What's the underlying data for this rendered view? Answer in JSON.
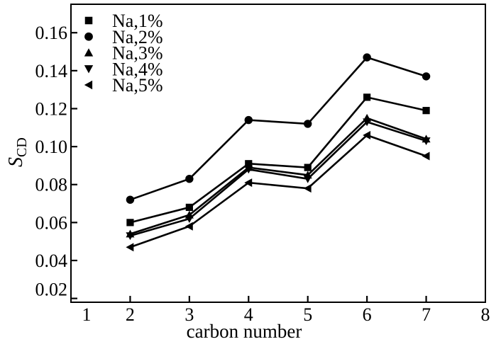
{
  "chart_data": {
    "type": "line",
    "title": "",
    "xlabel": "carbon number",
    "ylabel": "S",
    "ylabel_subscript": "CD",
    "x": [
      2,
      3,
      4,
      5,
      6,
      7
    ],
    "xlim": [
      1,
      8
    ],
    "ylim": [
      0.018,
      0.175
    ],
    "x_ticks": [
      1,
      2,
      3,
      4,
      5,
      6,
      7,
      8
    ],
    "y_ticks": [
      0.02,
      0.04,
      0.06,
      0.08,
      0.1,
      0.12,
      0.14,
      0.16
    ],
    "grid": false,
    "legend_position": "top-left",
    "line_color": "#000000",
    "marker_color": "#000000",
    "background_color": "#ffffff",
    "series": [
      {
        "name": "Na,1%",
        "marker": "square",
        "values": [
          0.06,
          0.068,
          0.091,
          0.089,
          0.126,
          0.119
        ]
      },
      {
        "name": "Na,2%",
        "marker": "circle",
        "values": [
          0.072,
          0.083,
          0.114,
          0.112,
          0.147,
          0.137
        ]
      },
      {
        "name": "Na,3%",
        "marker": "triangle-up",
        "values": [
          0.054,
          0.064,
          0.089,
          0.085,
          0.115,
          0.104
        ]
      },
      {
        "name": "Na,4%",
        "marker": "triangle-down",
        "values": [
          0.053,
          0.062,
          0.088,
          0.083,
          0.113,
          0.103
        ]
      },
      {
        "name": "Na,5%",
        "marker": "triangle-left",
        "values": [
          0.047,
          0.058,
          0.081,
          0.078,
          0.106,
          0.095
        ]
      }
    ]
  }
}
